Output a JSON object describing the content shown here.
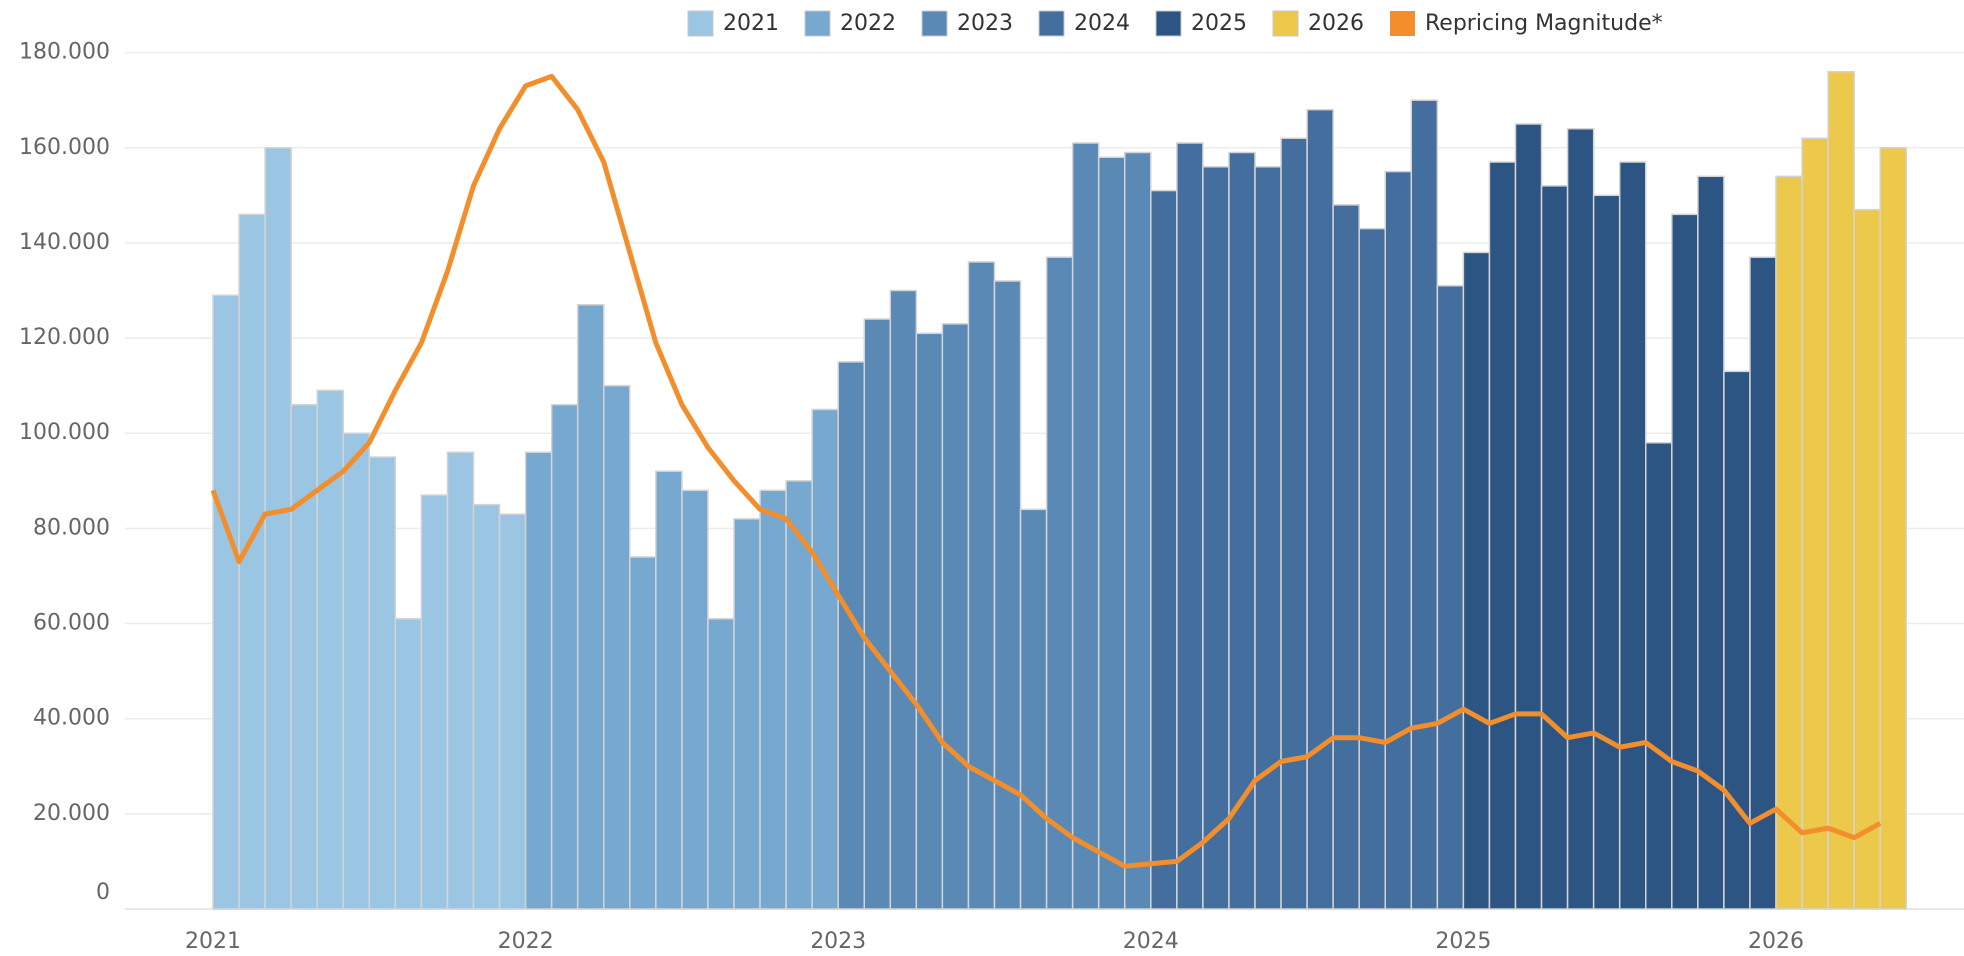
{
  "chart_data": {
    "type": "bar",
    "x": [
      "2021",
      null,
      null,
      null,
      null,
      null,
      null,
      null,
      null,
      null,
      null,
      null,
      "2022",
      null,
      null,
      null,
      null,
      null,
      null,
      null,
      null,
      null,
      null,
      null,
      "2023",
      null,
      null,
      null,
      null,
      null,
      null,
      null,
      null,
      null,
      null,
      null,
      "2024",
      null,
      null,
      null,
      null,
      null,
      null,
      null,
      null,
      null,
      null,
      null,
      "2025",
      null,
      null,
      null,
      null,
      null,
      null,
      null,
      null,
      null,
      null,
      null,
      "2026",
      null,
      null,
      null,
      null
    ],
    "ylim": [
      0,
      180000
    ],
    "yticks": [
      0,
      {
        "value": 20000,
        "label": "20.000"
      },
      {
        "value": 40000,
        "label": "40.000"
      },
      {
        "value": 60000,
        "label": "60.000"
      },
      {
        "value": 80000,
        "label": "80.000"
      },
      {
        "value": 100000,
        "label": "100.000"
      },
      {
        "value": 120000,
        "label": "120.000"
      },
      {
        "value": 140000,
        "label": "140.000"
      },
      {
        "value": 160000,
        "label": "160.000"
      },
      {
        "value": 180000,
        "label": "180.000"
      }
    ],
    "grid": true,
    "legend": "top",
    "series": [
      {
        "name": "2021",
        "type": "bar",
        "color": "#9ac5e3",
        "values": [
          129000,
          146000,
          160000,
          106000,
          109000,
          100000,
          95000,
          61000,
          87000,
          96000,
          85000,
          83000,
          null,
          null,
          null,
          null,
          null,
          null,
          null,
          null,
          null,
          null,
          null,
          null,
          null,
          null,
          null,
          null,
          null,
          null,
          null,
          null,
          null,
          null,
          null,
          null,
          null,
          null,
          null,
          null,
          null,
          null,
          null,
          null,
          null,
          null,
          null,
          null,
          null,
          null,
          null,
          null,
          null,
          null,
          null,
          null,
          null,
          null,
          null,
          null,
          null,
          null,
          null,
          null,
          null
        ]
      },
      {
        "name": "2022",
        "type": "bar",
        "color": "#77a8cf",
        "values": [
          null,
          null,
          null,
          null,
          null,
          null,
          null,
          null,
          null,
          null,
          null,
          null,
          96000,
          106000,
          127000,
          110000,
          74000,
          92000,
          88000,
          61000,
          82000,
          88000,
          90000,
          105000,
          null,
          null,
          null,
          null,
          null,
          null,
          null,
          null,
          null,
          null,
          null,
          null,
          null,
          null,
          null,
          null,
          null,
          null,
          null,
          null,
          null,
          null,
          null,
          null,
          null,
          null,
          null,
          null,
          null,
          null,
          null,
          null,
          null,
          null,
          null,
          null,
          null,
          null,
          null,
          null,
          null
        ]
      },
      {
        "name": "2023",
        "type": "bar",
        "color": "#5b89b6",
        "values": [
          null,
          null,
          null,
          null,
          null,
          null,
          null,
          null,
          null,
          null,
          null,
          null,
          null,
          null,
          null,
          null,
          null,
          null,
          null,
          null,
          null,
          null,
          null,
          null,
          115000,
          124000,
          130000,
          121000,
          123000,
          136000,
          132000,
          84000,
          137000,
          161000,
          158000,
          159000,
          null,
          null,
          null,
          null,
          null,
          null,
          null,
          null,
          null,
          null,
          null,
          null,
          null,
          null,
          null,
          null,
          null,
          null,
          null,
          null,
          null,
          null,
          null,
          null,
          null,
          null,
          null,
          null,
          null
        ]
      },
      {
        "name": "2024",
        "type": "bar",
        "color": "#446e9e",
        "values": [
          null,
          null,
          null,
          null,
          null,
          null,
          null,
          null,
          null,
          null,
          null,
          null,
          null,
          null,
          null,
          null,
          null,
          null,
          null,
          null,
          null,
          null,
          null,
          null,
          null,
          null,
          null,
          null,
          null,
          null,
          null,
          null,
          null,
          null,
          null,
          null,
          151000,
          161000,
          156000,
          159000,
          156000,
          162000,
          168000,
          148000,
          143000,
          155000,
          170000,
          131000,
          null,
          null,
          null,
          null,
          null,
          null,
          null,
          null,
          null,
          null,
          null,
          null,
          null,
          null,
          null,
          null,
          null
        ]
      },
      {
        "name": "2025",
        "type": "bar",
        "color": "#2c5583",
        "values": [
          null,
          null,
          null,
          null,
          null,
          null,
          null,
          null,
          null,
          null,
          null,
          null,
          null,
          null,
          null,
          null,
          null,
          null,
          null,
          null,
          null,
          null,
          null,
          null,
          null,
          null,
          null,
          null,
          null,
          null,
          null,
          null,
          null,
          null,
          null,
          null,
          null,
          null,
          null,
          null,
          null,
          null,
          null,
          null,
          null,
          null,
          null,
          null,
          138000,
          157000,
          165000,
          152000,
          164000,
          150000,
          157000,
          98000,
          146000,
          154000,
          113000,
          137000,
          null,
          null,
          null,
          null,
          null
        ]
      },
      {
        "name": "2026",
        "type": "bar",
        "color": "#ecc94b",
        "values": [
          null,
          null,
          null,
          null,
          null,
          null,
          null,
          null,
          null,
          null,
          null,
          null,
          null,
          null,
          null,
          null,
          null,
          null,
          null,
          null,
          null,
          null,
          null,
          null,
          null,
          null,
          null,
          null,
          null,
          null,
          null,
          null,
          null,
          null,
          null,
          null,
          null,
          null,
          null,
          null,
          null,
          null,
          null,
          null,
          null,
          null,
          null,
          null,
          null,
          null,
          null,
          null,
          null,
          null,
          null,
          null,
          null,
          null,
          null,
          null,
          154000,
          162000,
          176000,
          147000,
          160000
        ]
      },
      {
        "name": "Repricing Magnitude*",
        "type": "line",
        "color": "#f28e2b",
        "values": [
          88000,
          73000,
          83000,
          84000,
          88000,
          92000,
          98000,
          109000,
          119000,
          134000,
          152000,
          164000,
          173000,
          175000,
          168000,
          157000,
          138000,
          119000,
          106000,
          97000,
          90000,
          84000,
          82000,
          75000,
          66000,
          57000,
          50000,
          43000,
          35000,
          30000,
          27000,
          24000,
          19000,
          15000,
          12000,
          9000,
          9500,
          10000,
          14000,
          19000,
          27000,
          31000,
          32000,
          36000,
          36000,
          35000,
          38000,
          39000,
          42000,
          39000,
          41000,
          41000,
          36000,
          37000,
          34000,
          35000,
          31000,
          29000,
          25000,
          18000,
          21000,
          16000,
          17000,
          15000,
          18000
        ]
      }
    ]
  }
}
